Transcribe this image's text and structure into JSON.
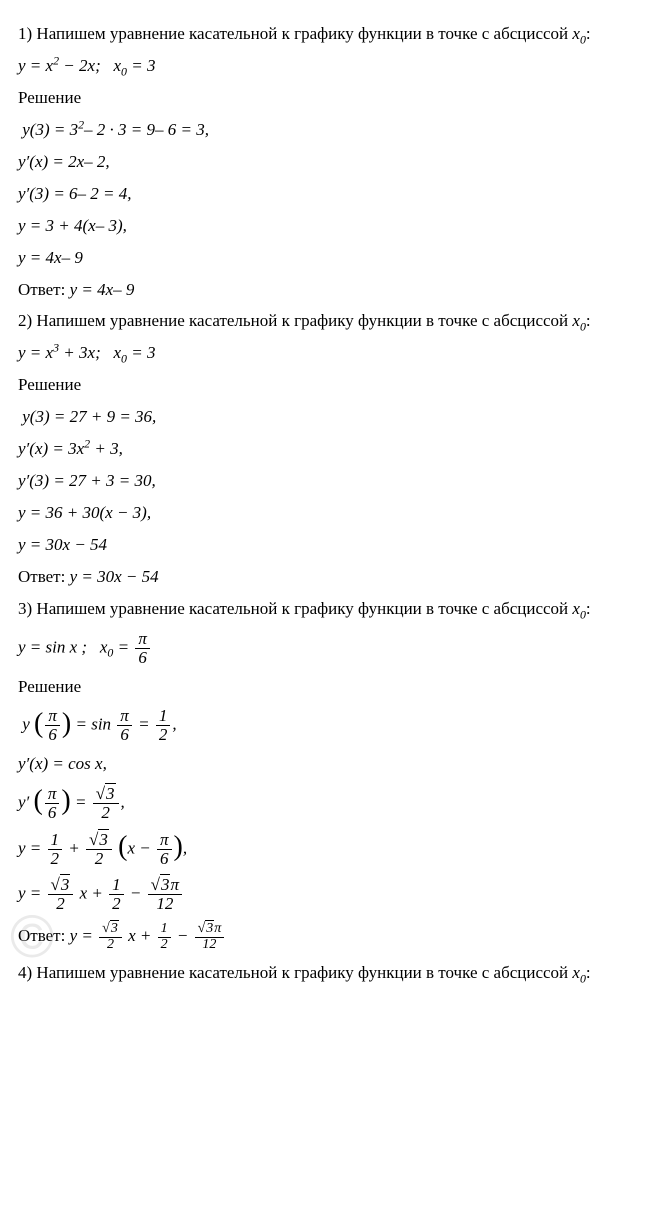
{
  "p1": {
    "intro_a": "1) Напишем уравнение касательной к графику функции в точке с абсциссой",
    "intro_b": "x",
    "intro_c": "0",
    "intro_d": ":",
    "given": "y = x² − 2x;   x₀ = 3",
    "sol_label": "Решение",
    "s1": " y(3) = 3²– 2 · 3 = 9– 6 = 3,",
    "s2": "y′(x) = 2x– 2,",
    "s3": "y′(3) = 6– 2 = 4,",
    "s4": "y = 3 + 4(x– 3),",
    "s5": "y = 4x– 9",
    "ans": "Ответ: y = 4x– 9"
  },
  "p2": {
    "intro_a": "2) Напишем уравнение касательной к графику функции в точке с абсциссой",
    "given": "y = x³ + 3x;   x₀ = 3",
    "sol_label": "Решение",
    "s1": " y(3) = 27 + 9 = 36,",
    "s2": "y′(x) = 3x² + 3,",
    "s3": "y′(3) = 27 + 3 = 30,",
    "s4": "y = 36 + 30(x − 3),",
    "s5": "y = 30x − 54",
    "ans": "Ответ: y = 30x − 54"
  },
  "p3": {
    "intro_a": "3) Напишем уравнение касательной к графику функции в точке с абсциссой",
    "given_pre": "y = sin x ;   x₀ = ",
    "pi": "π",
    "six": "6",
    "sol_label": "Решение",
    "s1_pre": " y ",
    "s1_mid": " = sin ",
    "s1_eq": " = ",
    "half_num": "1",
    "half_den": "2",
    "comma": ",",
    "s2": "y′(x) = cos x,",
    "s3_pre": "y′ ",
    "s3_eq": " = ",
    "rt3": "3",
    "two": "2",
    "s4_pre": "y = ",
    "plus": " + ",
    "s4_paren_in_pre": "x − ",
    "s5_pre": "y = ",
    "s5_x": " x + ",
    "minus": " − ",
    "rt3pi_num": "3",
    "rt3pi_pi": "π",
    "twelve": "12",
    "ans_pre": "Ответ: y = ",
    "ans_x": " x + ",
    "ans_minus": " − "
  },
  "p4": {
    "intro_a": "4) Напишем уравнение касательной к графику функции в точке с абсциссой",
    "intro_b": "x",
    "intro_c": "0",
    "intro_d": ":"
  },
  "wm": "©"
}
